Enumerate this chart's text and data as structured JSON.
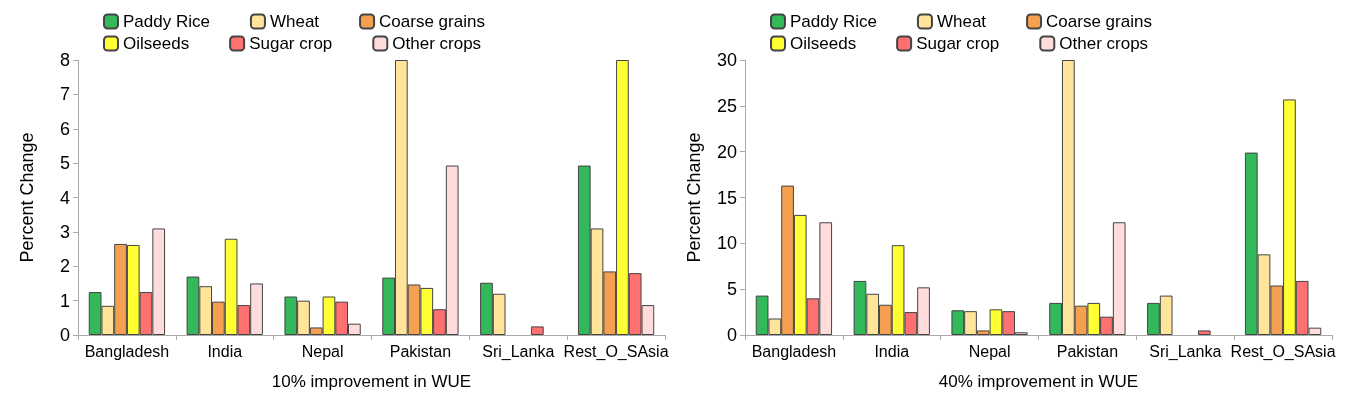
{
  "chart_data": [
    {
      "type": "bar",
      "xlabel": "10% improvement in WUE",
      "ylabel": "Percent Change",
      "categories": [
        "Bangladesh",
        "India",
        "Nepal",
        "Pakistan",
        "Sri_Lanka",
        "Rest_O_SAsia"
      ],
      "ylim": [
        0,
        8
      ],
      "yticks": [
        0,
        1,
        2,
        3,
        4,
        5,
        6,
        7,
        8
      ],
      "grid": false,
      "legend": "top",
      "series": [
        {
          "name": "Paddy Rice",
          "color": "#33b85a",
          "values": [
            1.25,
            1.7,
            1.12,
            1.67,
            1.52,
            4.93
          ]
        },
        {
          "name": "Wheat",
          "color": "#ffe49a",
          "values": [
            0.85,
            1.42,
            1.0,
            8,
            1.2,
            3.1
          ]
        },
        {
          "name": "Coarse grains",
          "color": "#f5a050",
          "values": [
            2.65,
            0.97,
            0.22,
            1.47,
            null,
            1.85
          ]
        },
        {
          "name": "Oilseeds",
          "color": "#ffff33",
          "values": [
            2.62,
            2.8,
            1.12,
            1.37,
            null,
            8
          ]
        },
        {
          "name": "Sugar crop",
          "color": "#ff7070",
          "values": [
            1.25,
            0.87,
            0.97,
            0.75,
            0.25,
            1.8
          ]
        },
        {
          "name": "Other crops",
          "color": "#ffdcdc",
          "values": [
            3.1,
            1.5,
            0.33,
            4.93,
            null,
            0.87
          ]
        }
      ]
    },
    {
      "type": "bar",
      "xlabel": "40% improvement in WUE",
      "ylabel": "Percent Change",
      "categories": [
        "Bangladesh",
        "India",
        "Nepal",
        "Pakistan",
        "Sri_Lanka",
        "Rest_O_SAsia"
      ],
      "ylim": [
        0,
        30
      ],
      "yticks": [
        0,
        5,
        10,
        15,
        20,
        25,
        30
      ],
      "grid": false,
      "legend": "top",
      "series": [
        {
          "name": "Paddy Rice",
          "color": "#33b85a",
          "values": [
            4.3,
            5.9,
            2.7,
            3.5,
            3.5,
            19.9
          ]
        },
        {
          "name": "Wheat",
          "color": "#ffe49a",
          "values": [
            1.8,
            4.5,
            2.6,
            30,
            4.3,
            8.8
          ]
        },
        {
          "name": "Coarse grains",
          "color": "#f5a050",
          "values": [
            16.3,
            3.3,
            0.5,
            3.2,
            null,
            5.4
          ]
        },
        {
          "name": "Oilseeds",
          "color": "#ffff33",
          "values": [
            13.1,
            9.8,
            2.8,
            3.5,
            null,
            25.7
          ]
        },
        {
          "name": "Sugar crop",
          "color": "#ff7070",
          "values": [
            4.0,
            2.5,
            2.6,
            2.0,
            0.5,
            5.9
          ]
        },
        {
          "name": "Other crops",
          "color": "#ffdcdc",
          "values": [
            12.3,
            5.2,
            0.3,
            12.3,
            null,
            0.8
          ]
        }
      ]
    }
  ]
}
